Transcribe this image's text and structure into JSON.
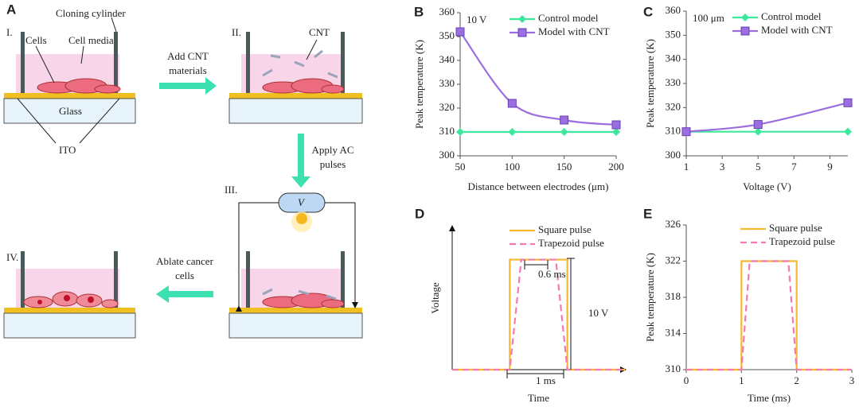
{
  "diagram": {
    "panel": "A",
    "steps": [
      "I.",
      "II.",
      "III.",
      "IV."
    ],
    "labels": {
      "cloning_cylinder": "Cloning cylinder",
      "cells": "Cells",
      "cell_media": "Cell media",
      "glass": "Glass",
      "ito": "ITO",
      "cnt": "CNT",
      "source": "V"
    },
    "arrows": [
      [
        "Add CNT",
        "materials"
      ],
      [
        "Apply AC",
        "pulses"
      ],
      [
        "Ablate cancer",
        "cells"
      ]
    ]
  },
  "chart_data": [
    {
      "type": "line",
      "panel": "B",
      "annotations": [
        "10 V"
      ],
      "x_label": "Distance between electrodes (μm)",
      "y_label": "Peak temperature (K)",
      "x": [
        50,
        100,
        150,
        200
      ],
      "series": [
        {
          "name": "Control model",
          "color": "#3de89c",
          "marker": "diamond",
          "values": [
            310,
            310,
            310,
            310
          ]
        },
        {
          "name": "Model with CNT",
          "color": "#9b6ee0",
          "marker": "square",
          "smooth": true,
          "values": [
            352,
            322,
            315,
            313
          ]
        }
      ],
      "xlim": [
        50,
        200
      ],
      "xticks": [
        50,
        100,
        150,
        200
      ],
      "ylim": [
        300,
        360
      ],
      "yticks": [
        300,
        310,
        320,
        330,
        340,
        350,
        360
      ]
    },
    {
      "type": "line",
      "panel": "C",
      "annotations": [
        "100 μm"
      ],
      "x_label": "Voltage (V)",
      "y_label": "Peak temperature (K)",
      "x": [
        1,
        5,
        10
      ],
      "series": [
        {
          "name": "Control model",
          "color": "#3de89c",
          "marker": "diamond",
          "values": [
            310,
            310,
            310
          ]
        },
        {
          "name": "Model with CNT",
          "color": "#9b6ee0",
          "marker": "square",
          "smooth": true,
          "values": [
            310,
            313,
            322
          ]
        }
      ],
      "xlim": [
        1,
        10
      ],
      "xticks": [
        1,
        3,
        5,
        7,
        9
      ],
      "ylim": [
        300,
        360
      ],
      "yticks": [
        300,
        310,
        320,
        330,
        340,
        350,
        360
      ]
    },
    {
      "type": "line",
      "panel": "D",
      "annotations": [
        "0.6 ms",
        "1 ms",
        "10 V"
      ],
      "x_label": "Time",
      "y_label": "Voltage",
      "series": [
        {
          "name": "Square pulse",
          "color": "#f5b82e",
          "x": [
            0,
            1,
            1,
            2,
            2,
            3
          ],
          "values": [
            0,
            0,
            10,
            10,
            0,
            0
          ]
        },
        {
          "name": "Trapezoid pulse",
          "color": "#f27ab0",
          "line_style": "dashed",
          "x": [
            0,
            1,
            1.2,
            1.8,
            2,
            3
          ],
          "values": [
            0,
            0,
            10,
            10,
            0,
            0
          ]
        }
      ],
      "xlim": [
        0,
        3
      ],
      "ylim": [
        0,
        13
      ],
      "axis_arrows": true
    },
    {
      "type": "line",
      "panel": "E",
      "x_label": "Time (ms)",
      "y_label": "Peak temperature (K)",
      "series": [
        {
          "name": "Square pulse",
          "color": "#f5b82e",
          "x": [
            0,
            1,
            1,
            2,
            2,
            3
          ],
          "values": [
            310,
            310,
            322,
            322,
            310,
            310
          ]
        },
        {
          "name": "Trapezoid pulse",
          "color": "#f27ab0",
          "line_style": "dashed",
          "x": [
            0,
            1,
            1.15,
            1.85,
            2,
            3
          ],
          "values": [
            310,
            310,
            322,
            322,
            310,
            310
          ]
        }
      ],
      "xlim": [
        0,
        3
      ],
      "xticks": [
        0,
        1,
        2,
        3
      ],
      "ylim": [
        310,
        326
      ],
      "yticks": [
        310,
        314,
        318,
        322,
        326
      ]
    }
  ]
}
